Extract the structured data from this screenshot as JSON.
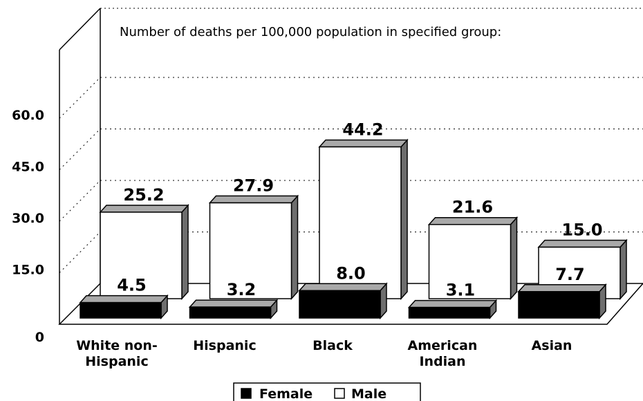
{
  "chart_data": {
    "type": "bar",
    "annotation": "Number of deaths per 100,000 population in specified group:",
    "categories": [
      [
        "White non-",
        "Hispanic"
      ],
      [
        "Hispanic"
      ],
      [
        "Black"
      ],
      [
        "American",
        "Indian"
      ],
      [
        "Asian"
      ]
    ],
    "series": [
      {
        "name": "Female",
        "values": [
          4.5,
          3.2,
          8.0,
          3.1,
          7.7
        ],
        "labels": [
          "4.5",
          "3.2",
          "8.0",
          "3.1",
          "7.7"
        ],
        "color": "#000000"
      },
      {
        "name": "Male",
        "values": [
          25.2,
          27.9,
          44.2,
          21.6,
          15.0
        ],
        "labels": [
          "25.2",
          "27.9",
          "44.2",
          "21.6",
          "15.0"
        ],
        "color": "#ffffff"
      }
    ],
    "yticks": [
      "0",
      "15.0",
      "30.0",
      "45.0",
      "60.0"
    ],
    "ylim": [
      0,
      60
    ],
    "grid": true,
    "legend_position": "bottom-center",
    "colors": {
      "bar_top": "#a9a9a9",
      "bar_side": "#6e6e6e",
      "female": "#000000",
      "male": "#ffffff"
    }
  }
}
